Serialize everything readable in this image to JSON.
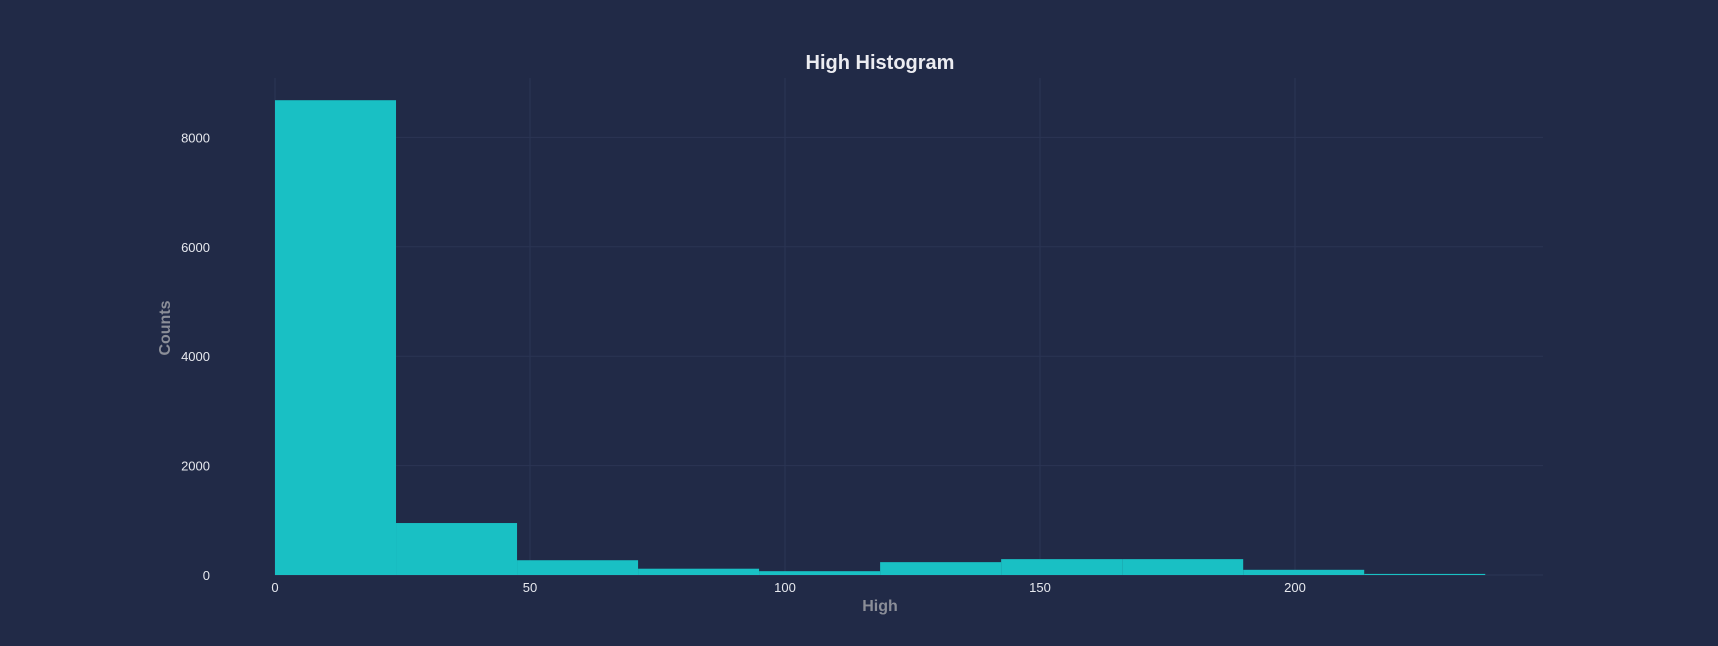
{
  "chart_data": {
    "type": "bar",
    "subtype": "histogram",
    "title": "High Histogram",
    "xlabel": "High",
    "ylabel": "Counts",
    "bin_width": 23.73,
    "bins": [
      {
        "x0": 0,
        "x1": 23.73,
        "count": 8680
      },
      {
        "x0": 23.73,
        "x1": 47.46,
        "count": 950
      },
      {
        "x0": 47.46,
        "x1": 71.19,
        "count": 270
      },
      {
        "x0": 71.19,
        "x1": 94.92,
        "count": 115
      },
      {
        "x0": 94.92,
        "x1": 118.65,
        "count": 70
      },
      {
        "x0": 118.65,
        "x1": 142.38,
        "count": 235
      },
      {
        "x0": 142.38,
        "x1": 166.11,
        "count": 290
      },
      {
        "x0": 166.11,
        "x1": 189.84,
        "count": 290
      },
      {
        "x0": 189.84,
        "x1": 213.57,
        "count": 95
      },
      {
        "x0": 213.57,
        "x1": 237.3,
        "count": 20
      }
    ],
    "xlim": [
      0,
      248
    ],
    "ylim": [
      0,
      9000
    ],
    "x_ticks": [
      0,
      50,
      100,
      150,
      200
    ],
    "y_ticks": [
      0,
      2000,
      4000,
      6000,
      8000
    ],
    "grid": true,
    "legend": "none",
    "colors": {
      "background": "#212a47",
      "bar": "#19c0c4",
      "grid": "#2b3554",
      "title": "#ececf1",
      "axis_label": "#8b8e98",
      "tick_label": "#e6e8ee"
    }
  }
}
